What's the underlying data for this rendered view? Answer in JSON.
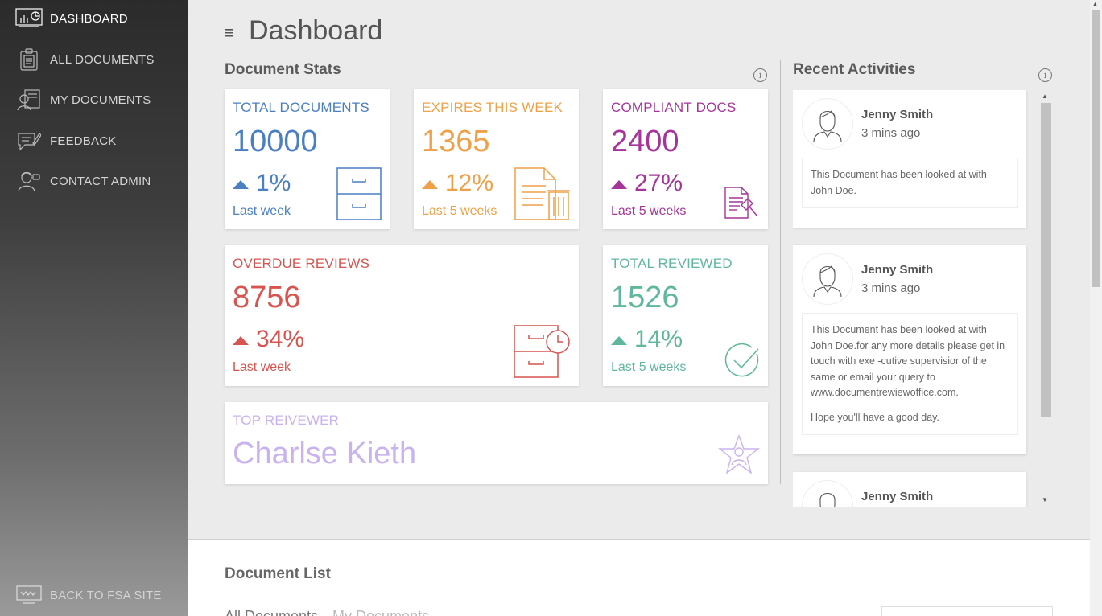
{
  "sidebar": {
    "items": [
      {
        "label": "DASHBOARD",
        "icon": "dashboard-icon",
        "active": true
      },
      {
        "label": "ALL DOCUMENTS",
        "icon": "clipboard-icon"
      },
      {
        "label": "MY DOCUMENTS",
        "icon": "user-documents-icon"
      },
      {
        "label": "FEEDBACK",
        "icon": "feedback-icon"
      },
      {
        "label": "CONTACT ADMIN",
        "icon": "admin-icon"
      }
    ],
    "back_label": "BACK TO FSA SITE"
  },
  "header": {
    "title": "Dashboard",
    "menu_icon": "≡"
  },
  "stats": {
    "title": "Document Stats",
    "info": "i",
    "cards": {
      "total_documents": {
        "title": "TOTAL DOCUMENTS",
        "value": "10000",
        "percent": "1%",
        "period": "Last week",
        "color": "#4a7fc4",
        "icon": "cabinet-icon"
      },
      "expires_this_week": {
        "title": "EXPIRES THIS WEEK",
        "value": "1365",
        "percent": "12%",
        "period": "Last 5 weeks",
        "color": "#f0a048",
        "icon": "document-trash-icon"
      },
      "compliant_docs": {
        "title": "COMPLIANT DOCS",
        "value": "2400",
        "percent": "27%",
        "period": "Last 5 weeks",
        "color": "#a6349a",
        "icon": "document-gavel-icon"
      },
      "overdue_reviews": {
        "title": "OVERDUE REVIEWS",
        "value": "8756",
        "percent": "34%",
        "period": "Last week",
        "color": "#d9534f",
        "icon": "cabinet-clock-icon"
      },
      "total_reviewed": {
        "title": "TOTAL REVIEWED",
        "value": "1526",
        "percent": "14%",
        "period": "Last 5 weeks",
        "color": "#5fb89d",
        "icon": "check-circle-icon"
      },
      "top_reviewer": {
        "title": "TOP REIVEWER",
        "value": "Charlse Kieth",
        "color": "#c9b3ef",
        "icon": "star-user-icon"
      }
    }
  },
  "activities": {
    "title": "Recent Activities",
    "info": "i",
    "items": [
      {
        "name": "Jenny Smith",
        "time": "3 mins ago",
        "message": "This Document has been looked at with John Doe."
      },
      {
        "name": "Jenny Smith",
        "time": "3 mins ago",
        "message": "This Document has been looked at with John Doe.for any more details please get in touch with exe -cutive supervisior of the same or email your query to www.documentrewiewoffice.com.",
        "message2": "Hope you'll have a good day."
      },
      {
        "name": "Jenny Smith",
        "time": "",
        "message": ""
      }
    ]
  },
  "document_list": {
    "title": "Document List",
    "tabs": [
      "All Documents",
      "My Documents"
    ]
  }
}
